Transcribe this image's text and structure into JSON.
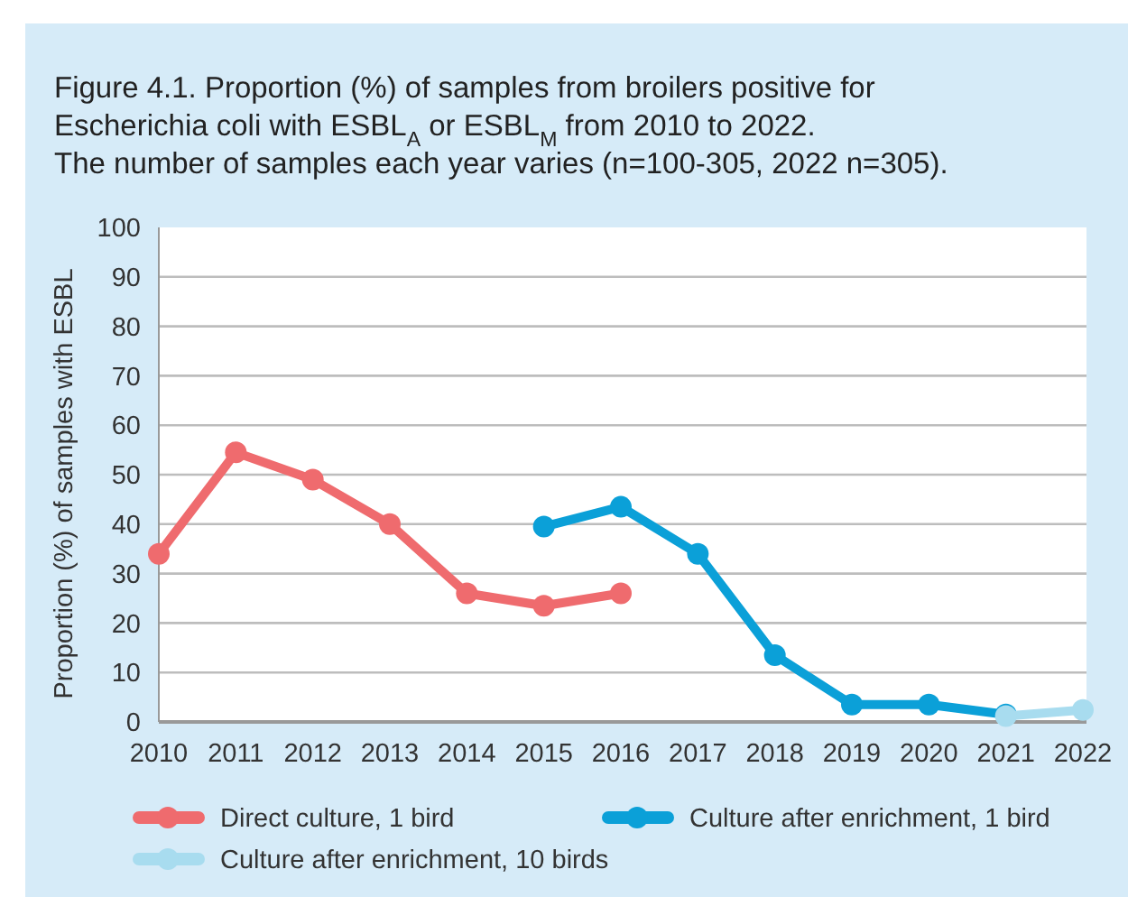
{
  "chart_data": {
    "type": "line",
    "title": "Figure 4.1. Proportion (%) of samples from broilers positive for Escherichia coli with ESBL$_{A}$ or ESBL$_{M}$ from 2010 to 2022.",
    "subtitle": "The number of samples each year varies (n=100-305, 2022 n=305).",
    "ylabel": "Proportion (%) of samples with ESBL",
    "xlim": [
      2010,
      2022
    ],
    "xticks": [
      2010,
      2011,
      2012,
      2013,
      2014,
      2015,
      2016,
      2017,
      2018,
      2019,
      2020,
      2021,
      2022
    ],
    "ylim": [
      0,
      100
    ],
    "yticks": [
      0,
      10,
      20,
      30,
      40,
      50,
      60,
      70,
      80,
      90,
      100
    ],
    "grid": "y",
    "legend": "bottom",
    "marker": "circle",
    "line_style": "solid",
    "series": [
      {
        "name": "Direct culture, 1 bird",
        "color": "#ef6b6e",
        "x": [
          2010,
          2011,
          2012,
          2013,
          2014,
          2015,
          2016
        ],
        "values": [
          34,
          54.5,
          49,
          40,
          26,
          23.5,
          26
        ]
      },
      {
        "name": "Culture after enrichment, 1 bird",
        "color": "#0ba0d8",
        "x": [
          2015,
          2016,
          2017,
          2018,
          2019,
          2020,
          2021
        ],
        "values": [
          39.5,
          43.5,
          34,
          13.5,
          3.5,
          3.5,
          1.5
        ]
      },
      {
        "name": "Culture after enrichment, 10 birds",
        "color": "#a8dcef",
        "x": [
          2021,
          2022
        ],
        "values": [
          1.2,
          2.4
        ]
      }
    ]
  }
}
